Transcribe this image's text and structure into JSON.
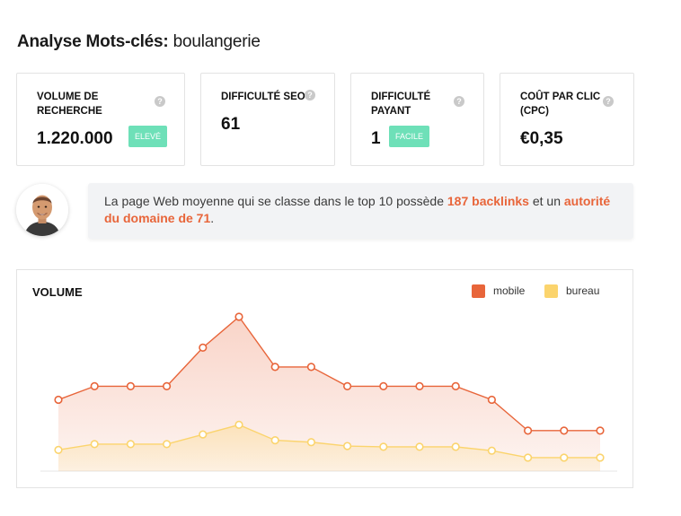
{
  "header": {
    "title_prefix": "Analyse Mots-clés:",
    "keyword": "boulangerie"
  },
  "cards": [
    {
      "label": "VOLUME DE RECHERCHE",
      "value": "1.220.000",
      "badge": "ELEVÉ"
    },
    {
      "label": "DIFFICULTÉ SEO",
      "value": "61"
    },
    {
      "label": "DIFFICULTÉ PAYANT",
      "value": "1",
      "badge": "FACILE"
    },
    {
      "label": "COÛT PAR CLIC (CPC)",
      "value": "€0,35"
    }
  ],
  "help_glyph": "?",
  "insight": {
    "part1": "La page Web moyenne qui se classe dans le top 10 possède ",
    "highlight1": "187 backlinks",
    "part2": " et un ",
    "highlight2": "autorité du domaine de 71",
    "part3": "."
  },
  "colors": {
    "mobile": "#e8653a",
    "bureau": "#fbd46d",
    "badge": "#6ee0b8",
    "highlight": "#e8653a"
  },
  "chart_data": {
    "type": "area",
    "title": "VOLUME",
    "legend_position": "top-right",
    "grid": false,
    "series": [
      {
        "name": "mobile",
        "values": [
          18.5,
          22,
          22,
          22,
          32,
          40,
          27,
          27,
          22,
          22,
          22,
          22,
          18.5,
          10.5,
          10.5,
          10.5
        ]
      },
      {
        "name": "bureau",
        "values": [
          5.5,
          7,
          7,
          7,
          9.5,
          12,
          8,
          7.5,
          6.5,
          6.3,
          6.3,
          6.3,
          5.3,
          3.5,
          3.5,
          3.5
        ]
      }
    ],
    "ylim": [
      0,
      48
    ]
  }
}
